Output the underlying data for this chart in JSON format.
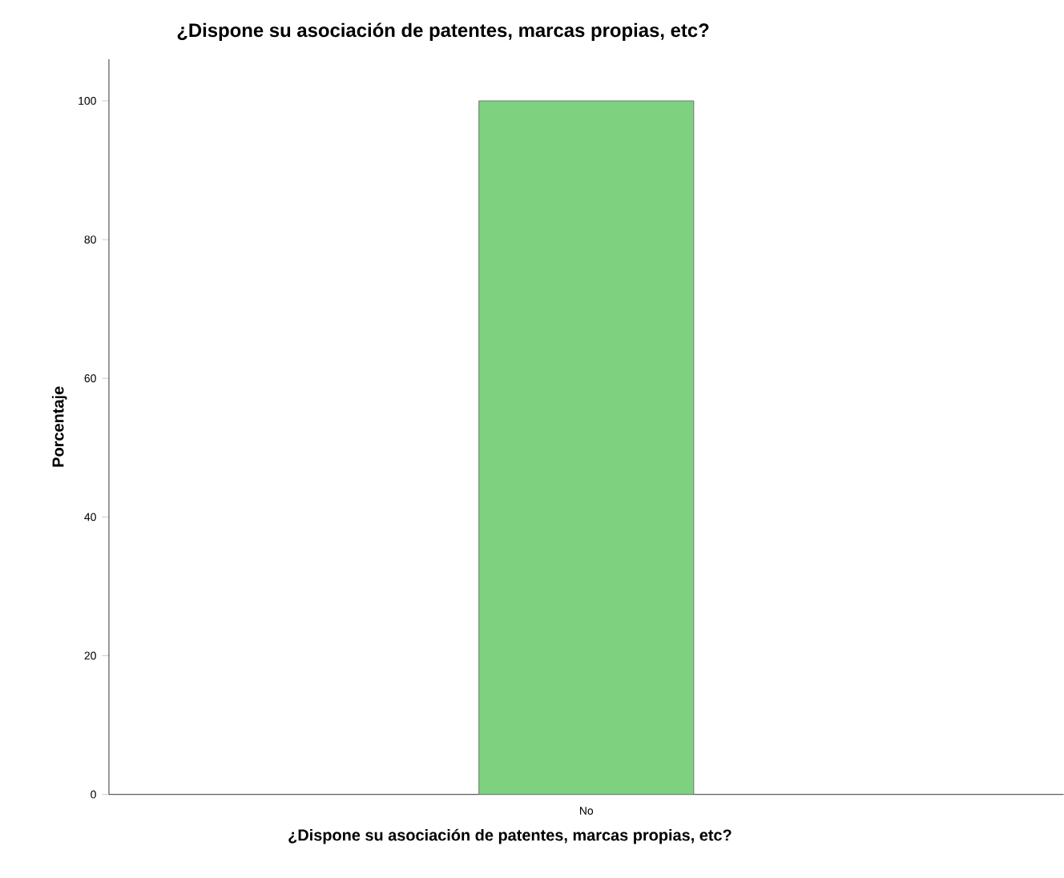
{
  "chart_data": {
    "type": "bar",
    "title": "¿Dispone su asociación de patentes, marcas propias, etc?",
    "xlabel": "¿Dispone su asociación de patentes, marcas propias, etc?",
    "ylabel": "Porcentaje",
    "categories": [
      "No"
    ],
    "values": [
      100
    ],
    "color": "#7dd17f",
    "ylim": [
      0,
      106
    ],
    "yticks": [
      0,
      20,
      40,
      60,
      80,
      100
    ],
    "grid": false
  }
}
